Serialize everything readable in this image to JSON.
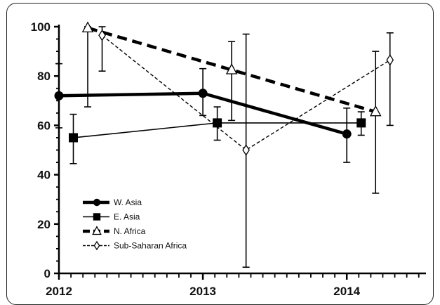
{
  "chart_data": {
    "type": "line",
    "x_ticks": [
      "2012",
      "2013",
      "2014"
    ],
    "y_ticks": [
      "0",
      "20",
      "40",
      "60",
      "80",
      "100"
    ],
    "xlim": [
      2012,
      2014.55
    ],
    "ylim": [
      0,
      100
    ],
    "legend_position": "lower-left",
    "series": [
      {
        "name": "W. Asia",
        "style": "thick-solid",
        "marker": "filled-circle",
        "points": [
          {
            "x": 2012.0,
            "y": 72,
            "err_low": 59,
            "err_high": 85
          },
          {
            "x": 2013.0,
            "y": 73,
            "err_low": 64,
            "err_high": 83
          },
          {
            "x": 2014.0,
            "y": 56.5,
            "err_low": 45,
            "err_high": 67
          }
        ]
      },
      {
        "name": "E. Asia",
        "style": "thin-solid",
        "marker": "filled-square",
        "points": [
          {
            "x": 2012.1,
            "y": 55,
            "err_low": 44.5,
            "err_high": 64.5
          },
          {
            "x": 2013.1,
            "y": 61,
            "err_low": 54,
            "err_high": 67.5
          },
          {
            "x": 2014.1,
            "y": 61,
            "err_low": 56,
            "err_high": 65.5
          }
        ]
      },
      {
        "name": "N. Africa",
        "style": "thick-dashed",
        "marker": "open-triangle",
        "points": [
          {
            "x": 2012.2,
            "y": 99.5,
            "err_low": 67.5,
            "err_high": 100
          },
          {
            "x": 2013.2,
            "y": 82.5,
            "err_low": 62,
            "err_high": 94
          },
          {
            "x": 2014.2,
            "y": 65.5,
            "err_low": 32.5,
            "err_high": 90
          }
        ]
      },
      {
        "name": "Sub-Saharan Africa",
        "style": "thin-dashed",
        "marker": "open-diamond",
        "points": [
          {
            "x": 2012.3,
            "y": 96.5,
            "err_low": 82,
            "err_high": 100
          },
          {
            "x": 2013.3,
            "y": 50,
            "err_low": 2.5,
            "err_high": 97
          },
          {
            "x": 2014.3,
            "y": 86.5,
            "err_low": 60,
            "err_high": 97.5
          }
        ]
      }
    ]
  }
}
